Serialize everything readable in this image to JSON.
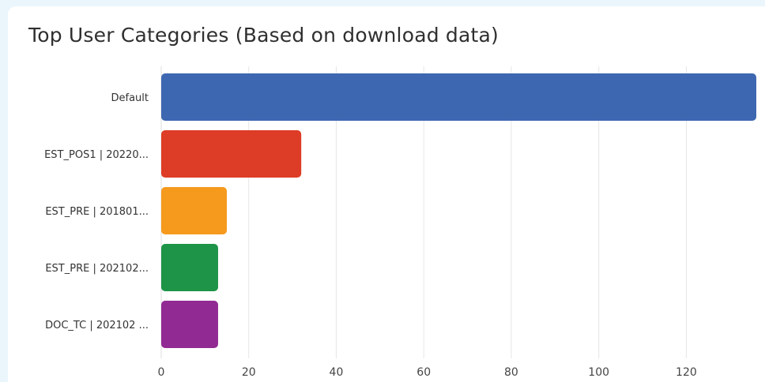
{
  "chart_data": {
    "type": "bar",
    "orientation": "horizontal",
    "title": "Top User Categories (Based on download data)",
    "categories": [
      "Default",
      "EST_POS1 | 20220...",
      "EST_PRE | 201801...",
      "EST_PRE | 202102...",
      "DOC_TC | 202102 ..."
    ],
    "values": [
      136,
      32,
      15,
      13,
      13
    ],
    "colors": [
      "#3e67b1",
      "#dd3c26",
      "#f59a1d",
      "#1d9447",
      "#922a93"
    ],
    "xticks": [
      0,
      20,
      40,
      60,
      80,
      100,
      120
    ],
    "xlim": [
      0,
      136
    ],
    "grid": true,
    "legend": "none"
  }
}
